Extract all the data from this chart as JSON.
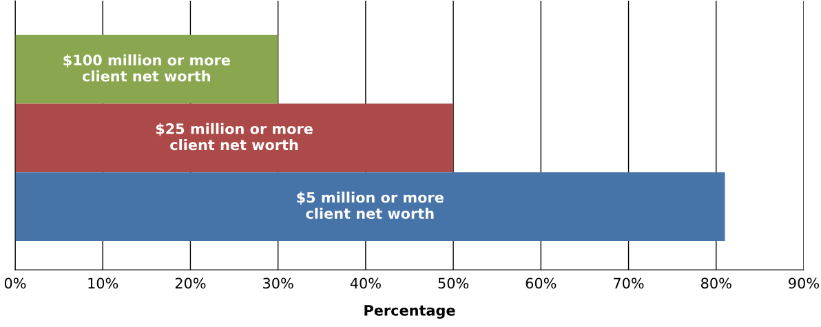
{
  "chart_data": {
    "type": "bar",
    "orientation": "horizontal",
    "xlabel": "Percentage",
    "categories": [
      "$100 million or more\nclient net worth",
      "$25 million or more\nclient net worth",
      "$5 million or more\nclient net worth"
    ],
    "values": [
      30,
      50,
      81
    ],
    "colors": [
      "#8aa74f",
      "#ab4a48",
      "#4774a8"
    ],
    "xlim": [
      0,
      90
    ],
    "xticks": [
      {
        "value": 0,
        "label": "0%"
      },
      {
        "value": 10,
        "label": "10%"
      },
      {
        "value": 20,
        "label": "20%"
      },
      {
        "value": 30,
        "label": "30%"
      },
      {
        "value": 40,
        "label": "40%"
      },
      {
        "value": 50,
        "label": "50%"
      },
      {
        "value": 60,
        "label": "60%"
      },
      {
        "value": 70,
        "label": "70%"
      },
      {
        "value": 80,
        "label": "80%"
      },
      {
        "value": 90,
        "label": "90%"
      }
    ],
    "grid": "x"
  }
}
